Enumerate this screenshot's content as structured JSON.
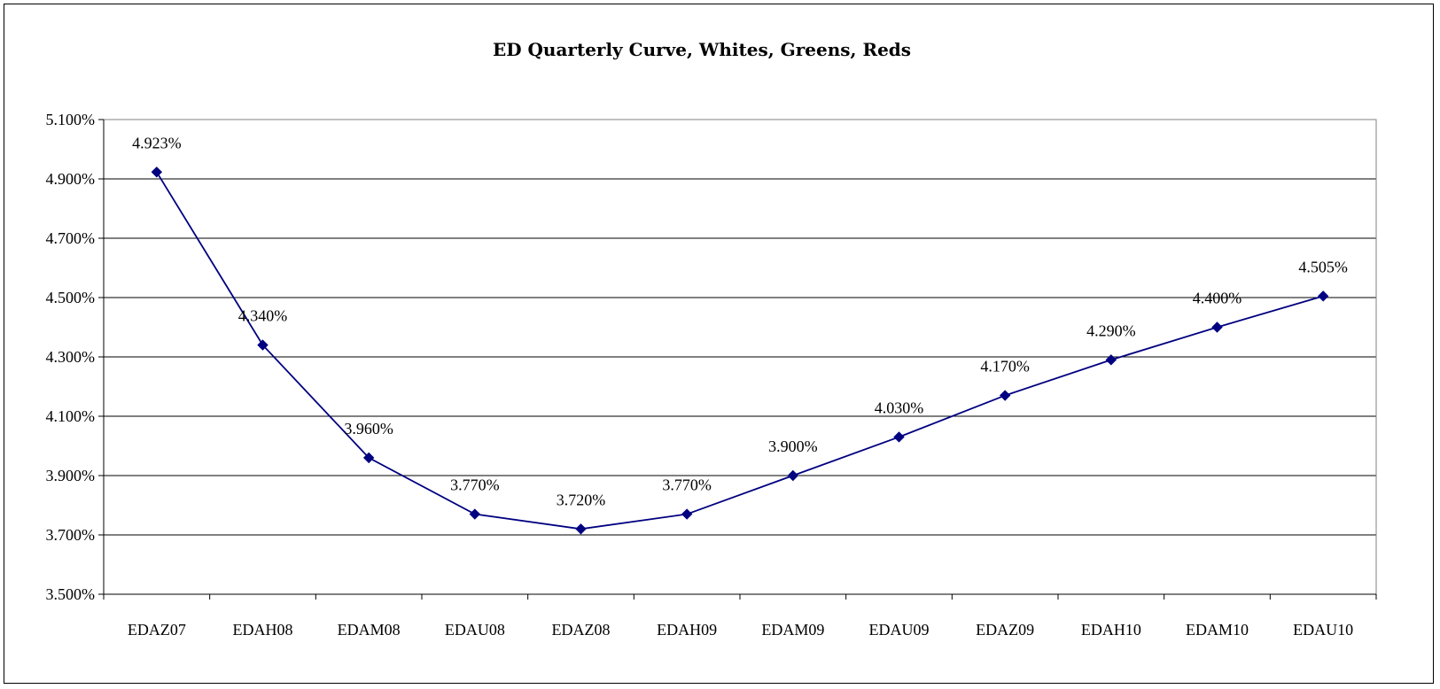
{
  "chart_data": {
    "type": "line",
    "title": "ED Quarterly Curve, Whites, Greens, Reds",
    "xlabel": "",
    "ylabel": "",
    "categories": [
      "EDAZ07",
      "EDAH08",
      "EDAM08",
      "EDAU08",
      "EDAZ08",
      "EDAH09",
      "EDAM09",
      "EDAU09",
      "EDAZ09",
      "EDAH10",
      "EDAM10",
      "EDAU10"
    ],
    "series": [
      {
        "values": [
          4.923,
          4.34,
          3.96,
          3.77,
          3.72,
          3.77,
          3.9,
          4.03,
          4.17,
          4.29,
          4.4,
          4.505
        ],
        "labels": [
          "4.923%",
          "4.340%",
          "3.960%",
          "3.770%",
          "3.720%",
          "3.770%",
          "3.900%",
          "4.030%",
          "4.170%",
          "4.290%",
          "4.400%",
          "4.505%"
        ],
        "color": "#000080",
        "marker": "diamond"
      }
    ],
    "ylim": [
      3.5,
      5.1
    ],
    "yticks": [
      3.5,
      3.7,
      3.9,
      4.1,
      4.3,
      4.5,
      4.7,
      4.9,
      5.1
    ],
    "ytick_labels": [
      "3.500%",
      "3.700%",
      "3.900%",
      "4.100%",
      "4.300%",
      "4.500%",
      "4.700%",
      "4.900%",
      "5.100%"
    ],
    "grid": true,
    "legend": "none"
  }
}
